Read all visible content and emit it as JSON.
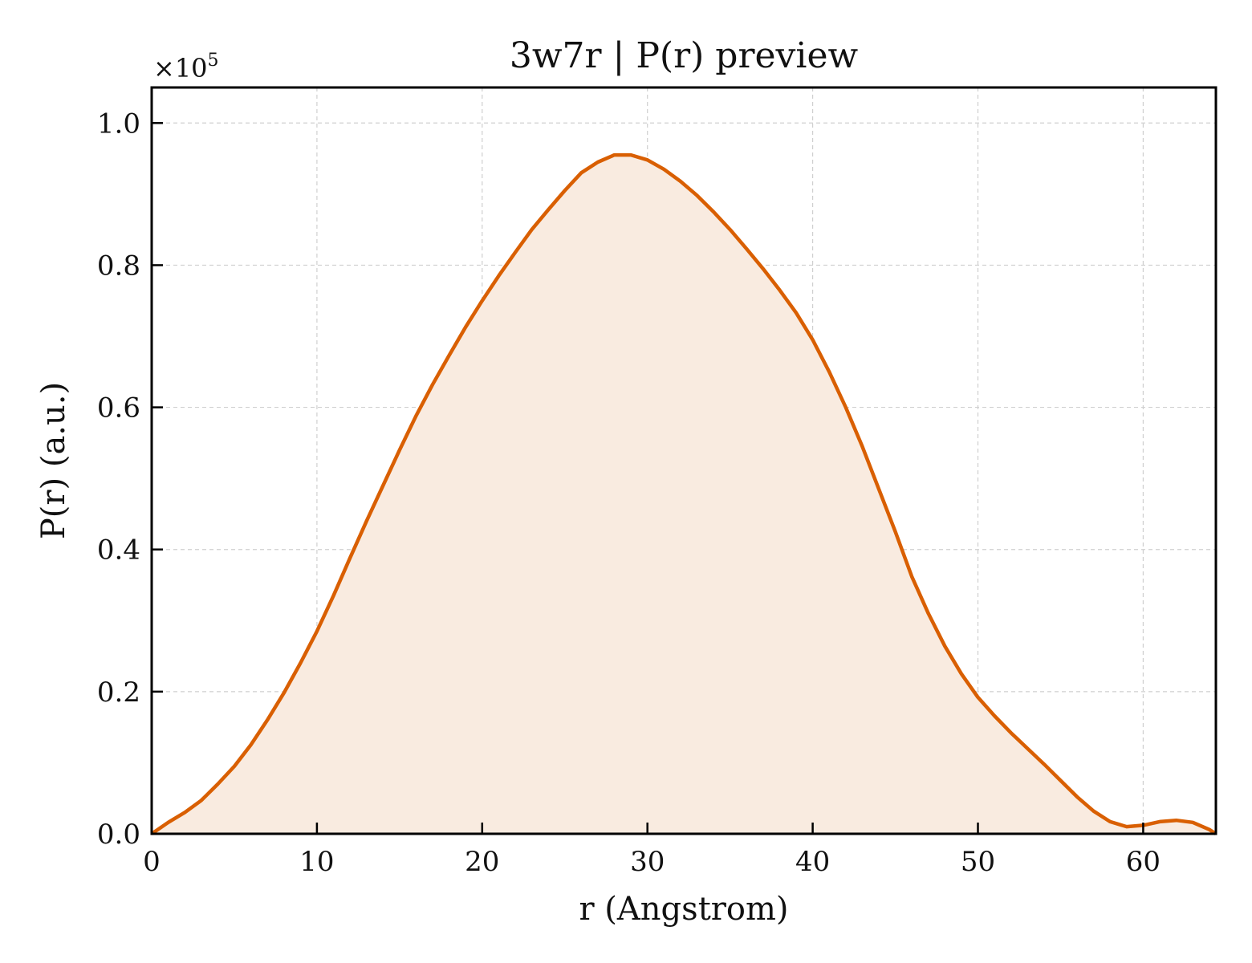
{
  "chart_data": {
    "type": "area",
    "title": "3w7r | P(r) preview",
    "xlabel": "r (Angstrom)",
    "ylabel": "P(r) (a.u.)",
    "y_multiplier": "×10",
    "y_multiplier_exp": "5",
    "xlim": [
      0,
      64.4
    ],
    "ylim": [
      0,
      1.05
    ],
    "xticks": [
      0,
      10,
      20,
      30,
      40,
      50,
      60
    ],
    "xtick_labels": [
      "0",
      "10",
      "20",
      "30",
      "40",
      "50",
      "60"
    ],
    "yticks": [
      0.0,
      0.2,
      0.4,
      0.6,
      0.8,
      1.0
    ],
    "ytick_labels": [
      "0.0",
      "0.2",
      "0.4",
      "0.6",
      "0.8",
      "1.0"
    ],
    "grid": true,
    "line_color": "#d95f02",
    "fill_color": "#f9ebe0",
    "series": [
      {
        "x": [
          0,
          1,
          2,
          3,
          4,
          5,
          6,
          7,
          8,
          9,
          10,
          11,
          12,
          13,
          14,
          15,
          16,
          17,
          18,
          19,
          20,
          21,
          22,
          23,
          24,
          25,
          26,
          27,
          28,
          29,
          30,
          31,
          32,
          33,
          34,
          35,
          36,
          37,
          38,
          39,
          40,
          41,
          42,
          43,
          44,
          45,
          46,
          47,
          48,
          49,
          50,
          51,
          52,
          53,
          54,
          55,
          56,
          57,
          58,
          59,
          60,
          61,
          62,
          63,
          64,
          64.4
        ],
        "y": [
          0.0,
          0.016,
          0.03,
          0.047,
          0.07,
          0.095,
          0.125,
          0.16,
          0.198,
          0.24,
          0.285,
          0.335,
          0.388,
          0.44,
          0.49,
          0.54,
          0.588,
          0.632,
          0.673,
          0.713,
          0.75,
          0.785,
          0.818,
          0.85,
          0.878,
          0.905,
          0.93,
          0.945,
          0.955,
          0.955,
          0.948,
          0.935,
          0.918,
          0.898,
          0.875,
          0.85,
          0.823,
          0.795,
          0.765,
          0.733,
          0.695,
          0.65,
          0.6,
          0.545,
          0.485,
          0.425,
          0.362,
          0.31,
          0.264,
          0.225,
          0.192,
          0.166,
          0.142,
          0.12,
          0.098,
          0.075,
          0.052,
          0.032,
          0.017,
          0.01,
          0.012,
          0.017,
          0.019,
          0.016,
          0.006,
          0.0
        ]
      }
    ]
  }
}
